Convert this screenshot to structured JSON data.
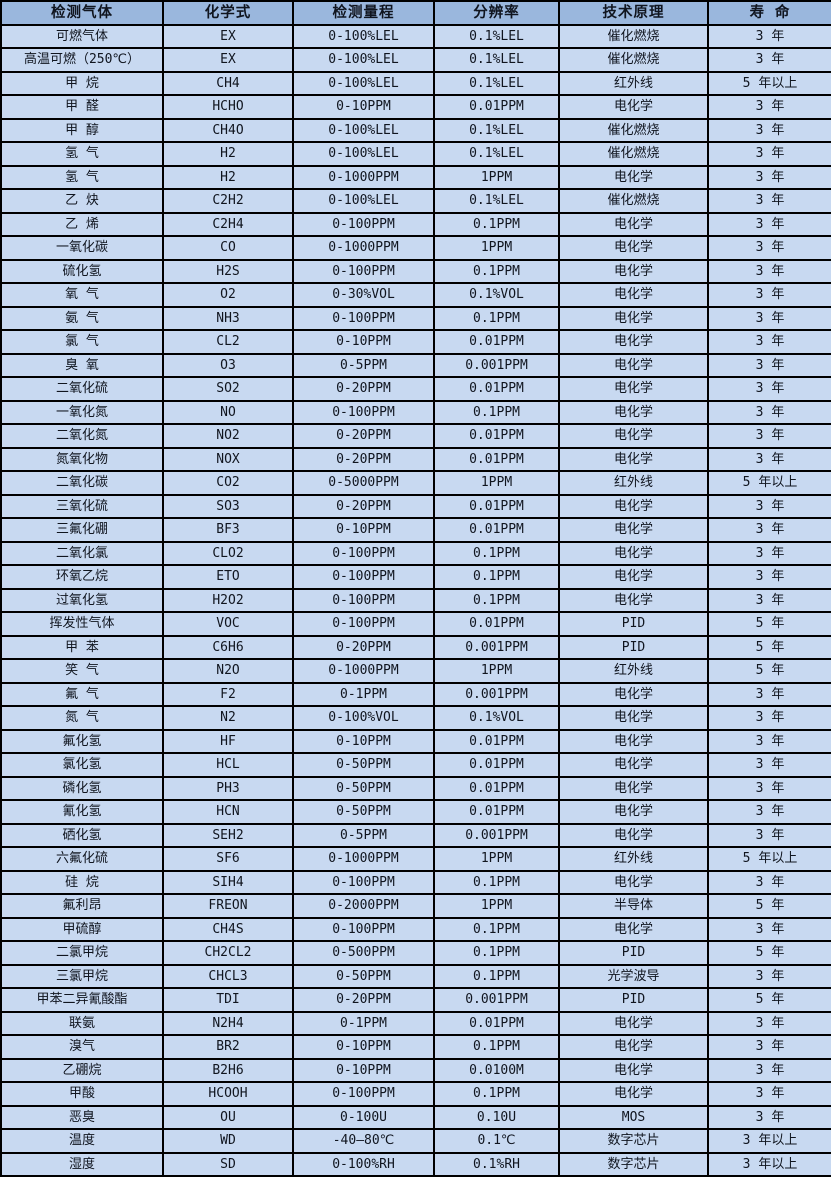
{
  "table": {
    "title": "gas-detection-sensor-specs",
    "column_keys": [
      "gas",
      "formula",
      "range",
      "resolution",
      "principle",
      "lifespan"
    ],
    "headers": [
      "检测气体",
      "化学式",
      "检测量程",
      "分辨率",
      "技术原理",
      "寿 命"
    ],
    "colors": {
      "header_bg": "#9ab7dd",
      "row_bg": "#c8d9f1",
      "border": "#000000",
      "text": "#10151f"
    },
    "rows": [
      [
        "可燃气体",
        "EX",
        "0-100%LEL",
        "0.1%LEL",
        "催化燃烧",
        "3 年"
      ],
      [
        "高温可燃（250℃）",
        "EX",
        "0-100%LEL",
        "0.1%LEL",
        "催化燃烧",
        "3 年"
      ],
      [
        "甲 烷",
        "CH4",
        "0-100%LEL",
        "0.1%LEL",
        "红外线",
        "5 年以上"
      ],
      [
        "甲 醛",
        "HCHO",
        "0-10PPM",
        "0.01PPM",
        "电化学",
        "3 年"
      ],
      [
        "甲 醇",
        "CH4O",
        "0-100%LEL",
        "0.1%LEL",
        "催化燃烧",
        "3 年"
      ],
      [
        "氢 气",
        "H2",
        "0-100%LEL",
        "0.1%LEL",
        "催化燃烧",
        "3 年"
      ],
      [
        "氢 气",
        "H2",
        "0-1000PPM",
        "1PPM",
        "电化学",
        "3 年"
      ],
      [
        "乙 炔",
        "C2H2",
        "0-100%LEL",
        "0.1%LEL",
        "催化燃烧",
        "3 年"
      ],
      [
        "乙 烯",
        "C2H4",
        "0-100PPM",
        "0.1PPM",
        "电化学",
        "3 年"
      ],
      [
        "一氧化碳",
        "CO",
        "0-1000PPM",
        "1PPM",
        "电化学",
        "3 年"
      ],
      [
        "硫化氢",
        "H2S",
        "0-100PPM",
        "0.1PPM",
        "电化学",
        "3 年"
      ],
      [
        "氧 气",
        "O2",
        "0-30%VOL",
        "0.1%VOL",
        "电化学",
        "3 年"
      ],
      [
        "氨 气",
        "NH3",
        "0-100PPM",
        "0.1PPM",
        "电化学",
        "3 年"
      ],
      [
        "氯 气",
        "CL2",
        "0-10PPM",
        "0.01PPM",
        "电化学",
        "3 年"
      ],
      [
        "臭 氧",
        "O3",
        "0-5PPM",
        "0.001PPM",
        "电化学",
        "3 年"
      ],
      [
        "二氧化硫",
        "SO2",
        "0-20PPM",
        "0.01PPM",
        "电化学",
        "3 年"
      ],
      [
        "一氧化氮",
        "NO",
        "0-100PPM",
        "0.1PPM",
        "电化学",
        "3 年"
      ],
      [
        "二氧化氮",
        "NO2",
        "0-20PPM",
        "0.01PPM",
        "电化学",
        "3 年"
      ],
      [
        "氮氧化物",
        "NOX",
        "0-20PPM",
        "0.01PPM",
        "电化学",
        "3 年"
      ],
      [
        "二氧化碳",
        "CO2",
        "0-5000PPM",
        "1PPM",
        "红外线",
        "5 年以上"
      ],
      [
        "三氧化硫",
        "SO3",
        "0-20PPM",
        "0.01PPM",
        "电化学",
        "3 年"
      ],
      [
        "三氟化硼",
        "BF3",
        "0-10PPM",
        "0.01PPM",
        "电化学",
        "3 年"
      ],
      [
        "二氧化氯",
        "CLO2",
        "0-100PPM",
        "0.1PPM",
        "电化学",
        "3 年"
      ],
      [
        "环氧乙烷",
        "ETO",
        "0-100PPM",
        "0.1PPM",
        "电化学",
        "3 年"
      ],
      [
        "过氧化氢",
        "H2O2",
        "0-100PPM",
        "0.1PPM",
        "电化学",
        "3 年"
      ],
      [
        "挥发性气体",
        "VOC",
        "0-100PPM",
        "0.01PPM",
        "PID",
        "5 年"
      ],
      [
        "甲 苯",
        "C6H6",
        "0-20PPM",
        "0.001PPM",
        "PID",
        "5 年"
      ],
      [
        "笑 气",
        "N2O",
        "0-1000PPM",
        "1PPM",
        "红外线",
        "5 年"
      ],
      [
        "氟 气",
        "F2",
        "0-1PPM",
        "0.001PPM",
        "电化学",
        "3 年"
      ],
      [
        "氮 气",
        "N2",
        "0-100%VOL",
        "0.1%VOL",
        "电化学",
        "3 年"
      ],
      [
        "氟化氢",
        "HF",
        "0-10PPM",
        "0.01PPM",
        "电化学",
        "3 年"
      ],
      [
        "氯化氢",
        "HCL",
        "0-50PPM",
        "0.01PPM",
        "电化学",
        "3 年"
      ],
      [
        "磷化氢",
        "PH3",
        "0-50PPM",
        "0.01PPM",
        "电化学",
        "3 年"
      ],
      [
        "氰化氢",
        "HCN",
        "0-50PPM",
        "0.01PPM",
        "电化学",
        "3 年"
      ],
      [
        "硒化氢",
        "SEH2",
        "0-5PPM",
        "0.001PPM",
        "电化学",
        "3 年"
      ],
      [
        "六氟化硫",
        "SF6",
        "0-1000PPM",
        "1PPM",
        "红外线",
        "5 年以上"
      ],
      [
        "硅 烷",
        "SIH4",
        "0-100PPM",
        "0.1PPM",
        "电化学",
        "3 年"
      ],
      [
        "氟利昂",
        "FREON",
        "0-2000PPM",
        "1PPM",
        "半导体",
        "5 年"
      ],
      [
        "甲硫醇",
        "CH4S",
        "0-100PPM",
        "0.1PPM",
        "电化学",
        "3 年"
      ],
      [
        "二氯甲烷",
        "CH2CL2",
        "0-500PPM",
        "0.1PPM",
        "PID",
        "5 年"
      ],
      [
        "三氯甲烷",
        "CHCL3",
        "0-50PPM",
        "0.1PPM",
        "光学波导",
        "3 年"
      ],
      [
        "甲苯二异氰酸酯",
        "TDI",
        "0-20PPM",
        "0.001PPM",
        "PID",
        "5 年"
      ],
      [
        "联氨",
        "N2H4",
        "0-1PPM",
        "0.01PPM",
        "电化学",
        "3 年"
      ],
      [
        "溴气",
        "BR2",
        "0-10PPM",
        "0.1PPM",
        "电化学",
        "3 年"
      ],
      [
        "乙硼烷",
        "B2H6",
        "0-10PPM",
        "0.0100M",
        "电化学",
        "3 年"
      ],
      [
        "甲酸",
        "HCOOH",
        "0-100PPM",
        "0.1PPM",
        "电化学",
        "3 年"
      ],
      [
        "恶臭",
        "OU",
        "0-100U",
        "0.10U",
        "MOS",
        "3 年"
      ],
      [
        "温度",
        "WD",
        "-40—80℃",
        "0.1℃",
        "数字芯片",
        "3 年以上"
      ],
      [
        "湿度",
        "SD",
        "0-100%RH",
        "0.1%RH",
        "数字芯片",
        "3 年以上"
      ]
    ]
  }
}
